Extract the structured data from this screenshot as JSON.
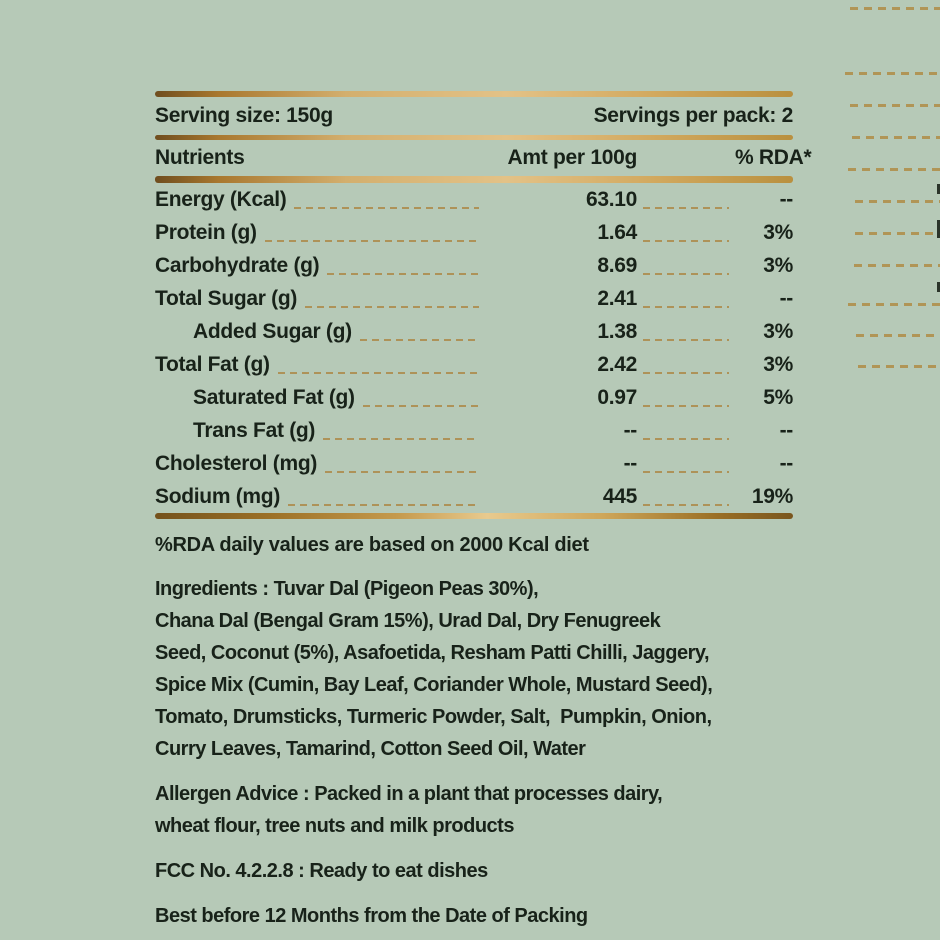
{
  "colors": {
    "background": "#b6c9b7",
    "text": "#182219",
    "gold_dark": "#74511c",
    "gold_light": "#e8ca8e",
    "leader_tan": "#ac8948"
  },
  "table": {
    "serving_size": "Serving size: 150g",
    "servings_per_pack": "Servings per pack: 2",
    "headers": {
      "nutrients": "Nutrients",
      "amount": "Amt per 100g",
      "rda": "% RDA*"
    },
    "rows": [
      {
        "label": "Energy (Kcal)",
        "amount": "63.10",
        "rda": "--",
        "indent": false
      },
      {
        "label": "Protein (g)",
        "amount": "1.64",
        "rda": "3%",
        "indent": false
      },
      {
        "label": "Carbohydrate (g)",
        "amount": "8.69",
        "rda": "3%",
        "indent": false
      },
      {
        "label": "Total Sugar (g)",
        "amount": "2.41",
        "rda": "--",
        "indent": false
      },
      {
        "label": "Added Sugar (g)",
        "amount": "1.38",
        "rda": "3%",
        "indent": true
      },
      {
        "label": "Total Fat (g)",
        "amount": "2.42",
        "rda": "3%",
        "indent": false
      },
      {
        "label": "Saturated Fat (g)",
        "amount": "0.97",
        "rda": "5%",
        "indent": true
      },
      {
        "label": "Trans Fat (g)",
        "amount": "--",
        "rda": "--",
        "indent": true
      },
      {
        "label": "Cholesterol (mg)",
        "amount": "--",
        "rda": "--",
        "indent": false
      },
      {
        "label": "Sodium (mg)",
        "amount": "445",
        "rda": "19%",
        "indent": false
      }
    ],
    "footnote": "%RDA daily values are based on 2000 Kcal diet"
  },
  "info": {
    "ingredients": "Ingredients : Tuvar Dal (Pigeon Peas 30%),\nChana Dal (Bengal Gram 15%), Urad Dal, Dry Fenugreek\nSeed, Coconut (5%), Asafoetida, Resham Patti Chilli, Jaggery,\nSpice Mix (Cumin, Bay Leaf, Coriander Whole, Mustard Seed),\nTomato, Drumsticks, Turmeric Powder, Salt,  Pumpkin, Onion,\nCurry Leaves, Tamarind, Cotton Seed Oil, Water",
    "allergen": "Allergen Advice : Packed in a plant that processes dairy,\nwheat flour, tree nuts and milk products",
    "fcc": "FCC No. 4.2.2.8 : Ready to eat dishes",
    "best_before": "Best before 12 Months from the Date of Packing"
  }
}
